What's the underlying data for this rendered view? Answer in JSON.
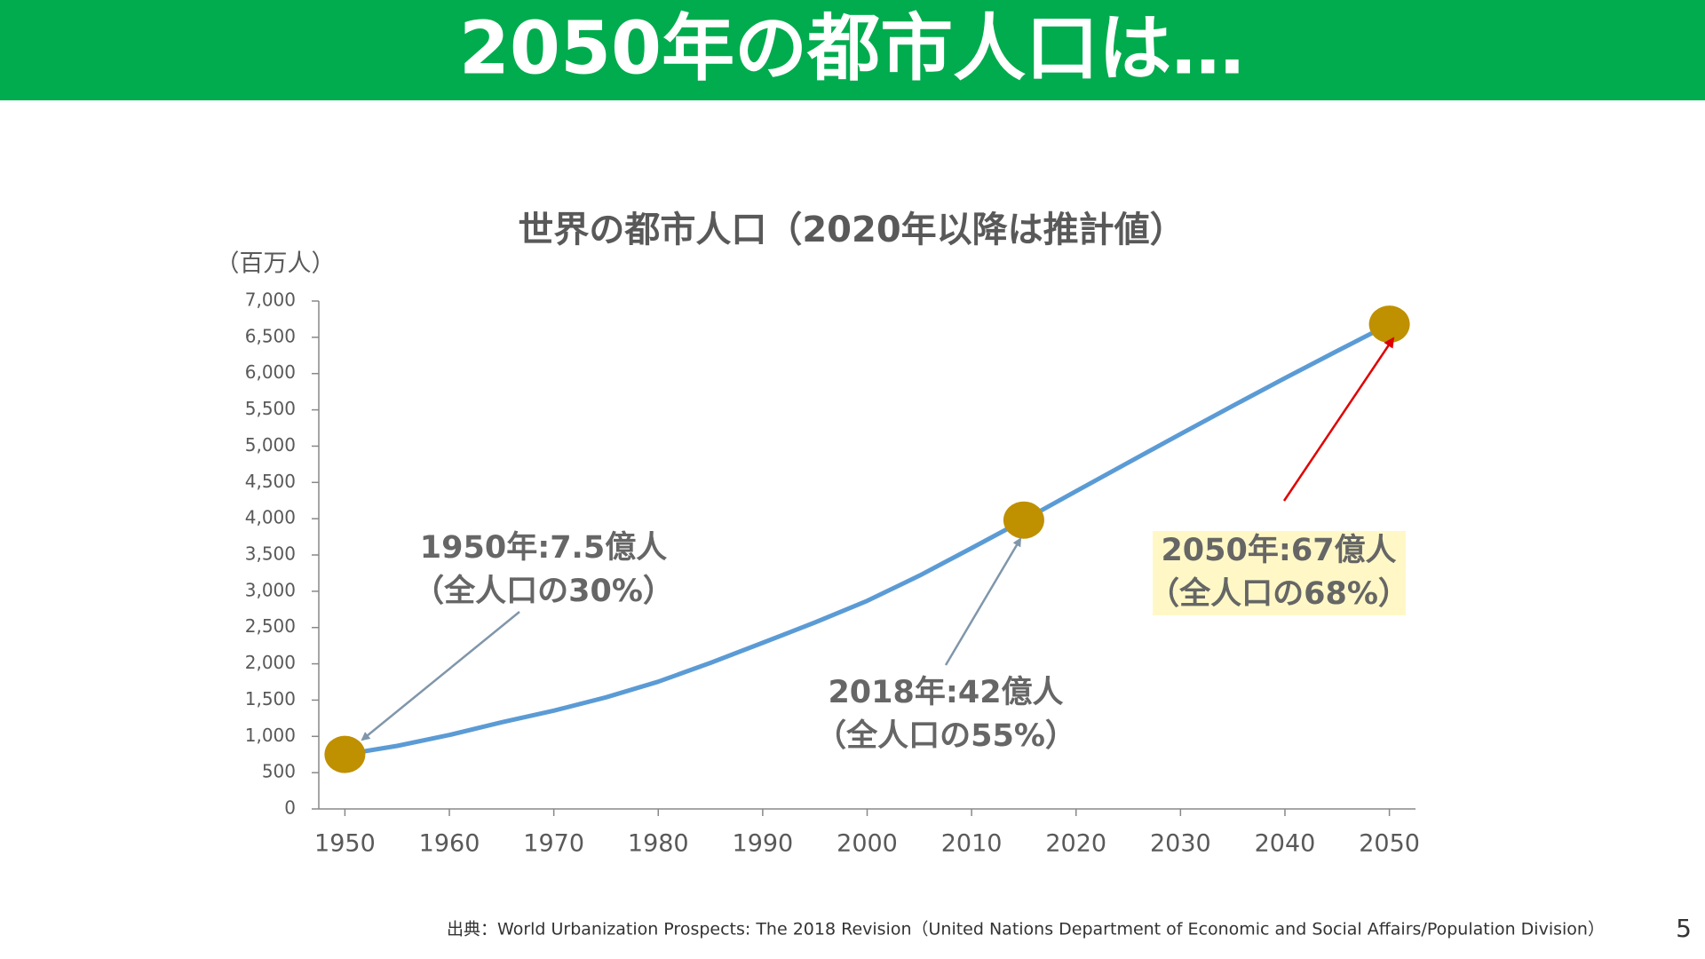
{
  "header": {
    "title": "2050年の都市人口は…"
  },
  "chart_data": {
    "type": "line",
    "title": "世界の都市人口（2020年以降は推計値）",
    "y_label": "（百万人）",
    "x": [
      1950,
      1955,
      1960,
      1965,
      1970,
      1975,
      1980,
      1985,
      1990,
      1995,
      2000,
      2005,
      2010,
      2015,
      2020,
      2025,
      2030,
      2035,
      2040,
      2045,
      2050
    ],
    "series": [
      {
        "color": "#5b9bd5",
        "values": [
          751,
          869,
          1019,
          1194,
          1354,
          1538,
          1754,
          2013,
          2290,
          2570,
          2868,
          3215,
          3595,
          3981,
          4379,
          4774,
          5167,
          5555,
          5938,
          6312,
          6680
        ]
      }
    ],
    "highlight_x": [
      1950,
      2015,
      2050
    ],
    "highlight_color": "#bf9000",
    "xlim": [
      1947.5,
      2052.5
    ],
    "ylim": [
      0,
      7000
    ],
    "xticks": [
      1950,
      1960,
      1970,
      1980,
      1990,
      2000,
      2010,
      2020,
      2030,
      2040,
      2050
    ],
    "yticks": [
      0,
      500,
      {
        "value": 1000,
        "label": "1,000"
      },
      {
        "value": 1500,
        "label": "1,500"
      },
      {
        "value": 2000,
        "label": "2,000"
      },
      {
        "value": 2500,
        "label": "2,500"
      },
      {
        "value": 3000,
        "label": "3,000"
      },
      {
        "value": 3500,
        "label": "3,500"
      },
      {
        "value": 4000,
        "label": "4,000"
      },
      {
        "value": 4500,
        "label": "4,500"
      },
      {
        "value": 5000,
        "label": "5,000"
      },
      {
        "value": 5500,
        "label": "5,500"
      },
      {
        "value": 6000,
        "label": "6,000"
      },
      {
        "value": 6500,
        "label": "6,500"
      },
      {
        "value": 7000,
        "label": "7,000"
      }
    ],
    "annotations": [
      {
        "lines": [
          "1950年:7.5億人",
          "（全人口の30%）"
        ]
      },
      {
        "lines": [
          "2018年:42億人",
          "（全人口の55%）"
        ]
      },
      {
        "lines": [
          "2050年:67億人",
          "（全人口の68%）"
        ]
      }
    ]
  },
  "footer": {
    "source": "出典：World Urbanization Prospects: The 2018 Revision（United Nations Department of Economic and Social Affairs/Population Division）",
    "page_number": "5"
  }
}
